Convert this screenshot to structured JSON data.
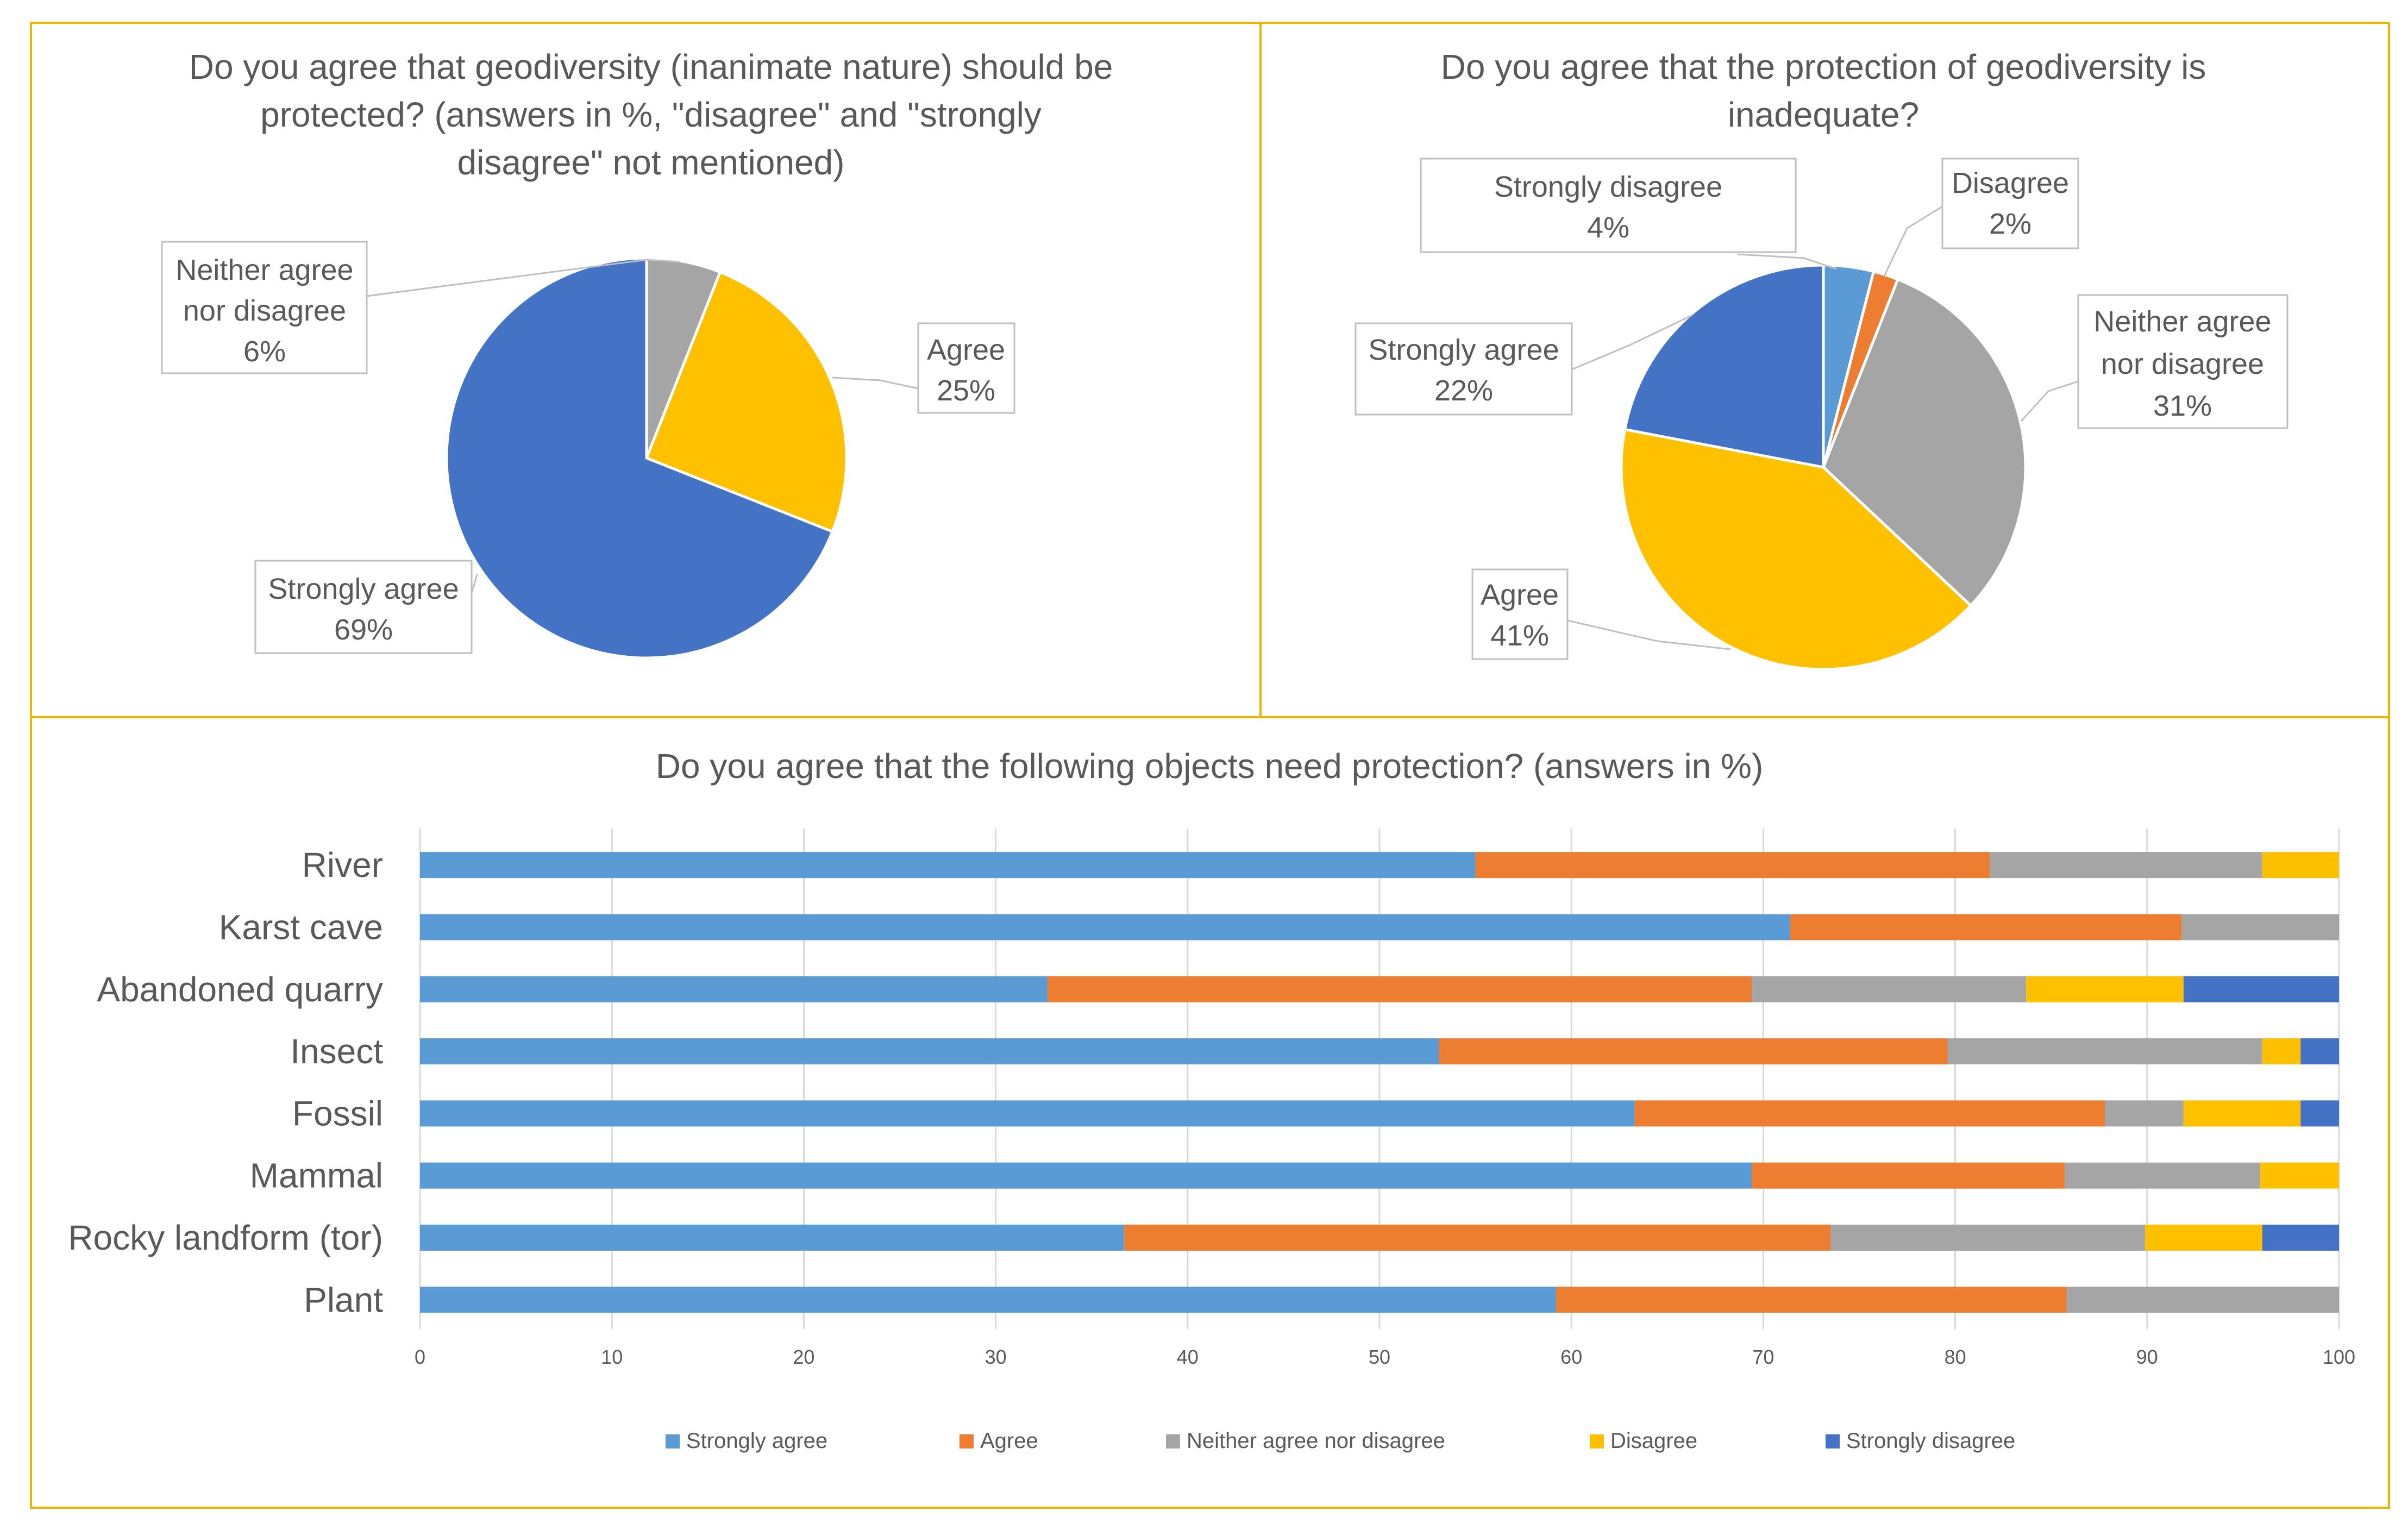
{
  "chart_data": [
    {
      "type": "pie",
      "title": "Do you agree that geodiversity (inanimate nature) should be protected? (answers in %, \"disagree\" and \"strongly disagree\" not mentioned)",
      "title_lines": [
        "Do you agree that geodiversity (inanimate nature) should be",
        "protected? (answers in %, \"disagree\" and \"strongly",
        "disagree\" not mentioned)"
      ],
      "slices": [
        {
          "label": "Neither agree nor disagree",
          "label_lines": [
            "Neither agree",
            "nor disagree"
          ],
          "value": 6,
          "value_label": "6%",
          "color": "#A5A5A5"
        },
        {
          "label": "Agree",
          "label_lines": [
            "Agree"
          ],
          "value": 25,
          "value_label": "25%",
          "color": "#FFC000"
        },
        {
          "label": "Strongly agree",
          "label_lines": [
            "Strongly agree"
          ],
          "value": 69,
          "value_label": "69%",
          "color": "#4472C4"
        }
      ]
    },
    {
      "type": "pie",
      "title": "Do you agree that the protection of geodiversity is inadequate?",
      "title_lines": [
        "Do you agree that the protection of geodiversity is",
        "inadequate?"
      ],
      "slices": [
        {
          "label": "Strongly disagree",
          "label_lines": [
            "Strongly disagree"
          ],
          "value": 4,
          "value_label": "4%",
          "color": "#5B9BD5"
        },
        {
          "label": "Disagree",
          "label_lines": [
            "Disagree"
          ],
          "value": 2,
          "value_label": "2%",
          "color": "#ED7D31"
        },
        {
          "label": "Neither agree nor disagree",
          "label_lines": [
            "Neither agree",
            "nor disagree"
          ],
          "value": 31,
          "value_label": "31%",
          "color": "#A5A5A5"
        },
        {
          "label": "Agree",
          "label_lines": [
            "Agree"
          ],
          "value": 41,
          "value_label": "41%",
          "color": "#FFC000"
        },
        {
          "label": "Strongly agree",
          "label_lines": [
            "Strongly agree"
          ],
          "value": 22,
          "value_label": "22%",
          "color": "#4472C4"
        }
      ]
    },
    {
      "type": "bar",
      "orientation": "horizontal",
      "stacked": true,
      "title": "Do you agree that the following objects need protection? (answers in %)",
      "categories": [
        "River",
        "Karst cave",
        "Abandoned quarry",
        "Insect",
        "Fossil",
        "Mammal",
        "Rocky landform (tor)",
        "Plant"
      ],
      "series": [
        {
          "name": "Strongly agree",
          "color": "#5B9BD5",
          "values": [
            55,
            71.4,
            32.7,
            53.1,
            63.3,
            69.4,
            36.7,
            59.2
          ]
        },
        {
          "name": "Agree",
          "color": "#ED7D31",
          "values": [
            26.8,
            20.4,
            36.7,
            26.5,
            24.5,
            16.3,
            36.8,
            26.6
          ]
        },
        {
          "name": "Neither agree nor disagree",
          "color": "#A5A5A5",
          "values": [
            14.2,
            8.2,
            14.3,
            16.4,
            4.1,
            10.2,
            16.4,
            14.2
          ]
        },
        {
          "name": "Disagree",
          "color": "#FFC000",
          "values": [
            4,
            0,
            8.2,
            2,
            6.1,
            4.1,
            6.1,
            0
          ]
        },
        {
          "name": "Strongly disagree",
          "color": "#4472C4",
          "values": [
            0,
            0,
            8.1,
            2,
            2,
            0,
            4,
            0
          ]
        }
      ],
      "xlim": [
        0,
        100
      ],
      "xticks": [
        0,
        10,
        20,
        30,
        40,
        50,
        60,
        70,
        80,
        90,
        100
      ],
      "grid": true,
      "legend_position": "bottom"
    }
  ]
}
